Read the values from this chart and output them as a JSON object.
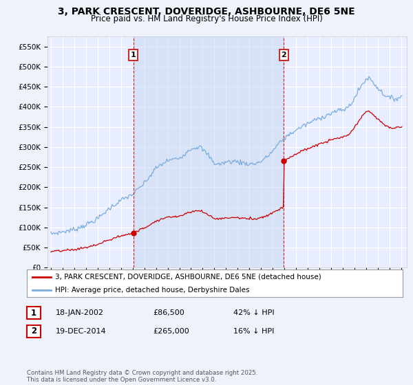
{
  "title": "3, PARK CRESCENT, DOVERIDGE, ASHBOURNE, DE6 5NE",
  "subtitle": "Price paid vs. HM Land Registry's House Price Index (HPI)",
  "title_fontsize": 10,
  "subtitle_fontsize": 8.5,
  "background_color": "#eef2fb",
  "plot_bg_color": "#e8eeff",
  "grid_color": "#ffffff",
  "shade_color": "#c8d8f0",
  "ylim": [
    0,
    575000
  ],
  "yticks": [
    0,
    50000,
    100000,
    150000,
    200000,
    250000,
    300000,
    350000,
    400000,
    450000,
    500000,
    550000
  ],
  "ytick_labels": [
    "£0",
    "£50K",
    "£100K",
    "£150K",
    "£200K",
    "£250K",
    "£300K",
    "£350K",
    "£400K",
    "£450K",
    "£500K",
    "£550K"
  ],
  "xlim_start": 1994.7,
  "xlim_end": 2025.5,
  "xticks": [
    1995,
    1996,
    1997,
    1998,
    1999,
    2000,
    2001,
    2002,
    2003,
    2004,
    2005,
    2006,
    2007,
    2008,
    2009,
    2010,
    2011,
    2012,
    2013,
    2014,
    2015,
    2016,
    2017,
    2018,
    2019,
    2020,
    2021,
    2022,
    2023,
    2024,
    2025
  ],
  "sale1_date": 2002.05,
  "sale1_price": 86500,
  "sale1_label": "1",
  "sale2_date": 2014.96,
  "sale2_price": 265000,
  "sale2_label": "2",
  "red_line_color": "#cc0000",
  "blue_line_color": "#7aaddb",
  "vline_color": "#cc0000",
  "legend_label_red": "3, PARK CRESCENT, DOVERIDGE, ASHBOURNE, DE6 5NE (detached house)",
  "legend_label_blue": "HPI: Average price, detached house, Derbyshire Dales",
  "annotation1_date": "18-JAN-2002",
  "annotation1_price": "£86,500",
  "annotation1_hpi": "42% ↓ HPI",
  "annotation2_date": "19-DEC-2014",
  "annotation2_price": "£265,000",
  "annotation2_hpi": "16% ↓ HPI",
  "footer": "Contains HM Land Registry data © Crown copyright and database right 2025.\nThis data is licensed under the Open Government Licence v3.0."
}
